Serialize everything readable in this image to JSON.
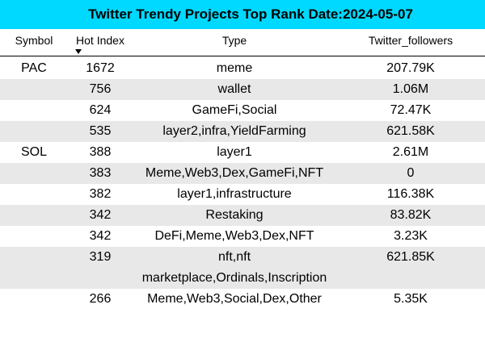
{
  "title": "Twitter Trendy Projects Top Rank Date:2024-05-07",
  "headers": {
    "symbol": "Symbol",
    "hot_index": "Hot Index",
    "type": "Type",
    "twitter_followers": "Twitter_followers"
  },
  "sort_icon": "sort-descending-icon",
  "rows": [
    {
      "symbol": "PAC",
      "hot_index": "1672",
      "type": "meme",
      "followers": "207.79K"
    },
    {
      "symbol": "",
      "hot_index": "756",
      "type": "wallet",
      "followers": "1.06M"
    },
    {
      "symbol": "",
      "hot_index": "624",
      "type": "GameFi,Social",
      "followers": "72.47K"
    },
    {
      "symbol": "",
      "hot_index": "535",
      "type": "layer2,infra,YieldFarming",
      "followers": "621.58K"
    },
    {
      "symbol": "SOL",
      "hot_index": "388",
      "type": "layer1",
      "followers": "2.61M"
    },
    {
      "symbol": "",
      "hot_index": "383",
      "type": "Meme,Web3,Dex,GameFi,NFT",
      "followers": "0"
    },
    {
      "symbol": "",
      "hot_index": "382",
      "type": "layer1,infrastructure",
      "followers": "116.38K"
    },
    {
      "symbol": "",
      "hot_index": "342",
      "type": "Restaking",
      "followers": "83.82K"
    },
    {
      "symbol": "",
      "hot_index": "342",
      "type": "DeFi,Meme,Web3,Dex,NFT",
      "followers": "3.23K"
    },
    {
      "symbol": "",
      "hot_index": "319",
      "type_line1": "nft,nft",
      "type_line2": "marketplace,Ordinals,Inscription",
      "followers": "621.85K"
    },
    {
      "symbol": "",
      "hot_index": "266",
      "type": "Meme,Web3,Social,Dex,Other",
      "followers": "5.35K"
    }
  ]
}
